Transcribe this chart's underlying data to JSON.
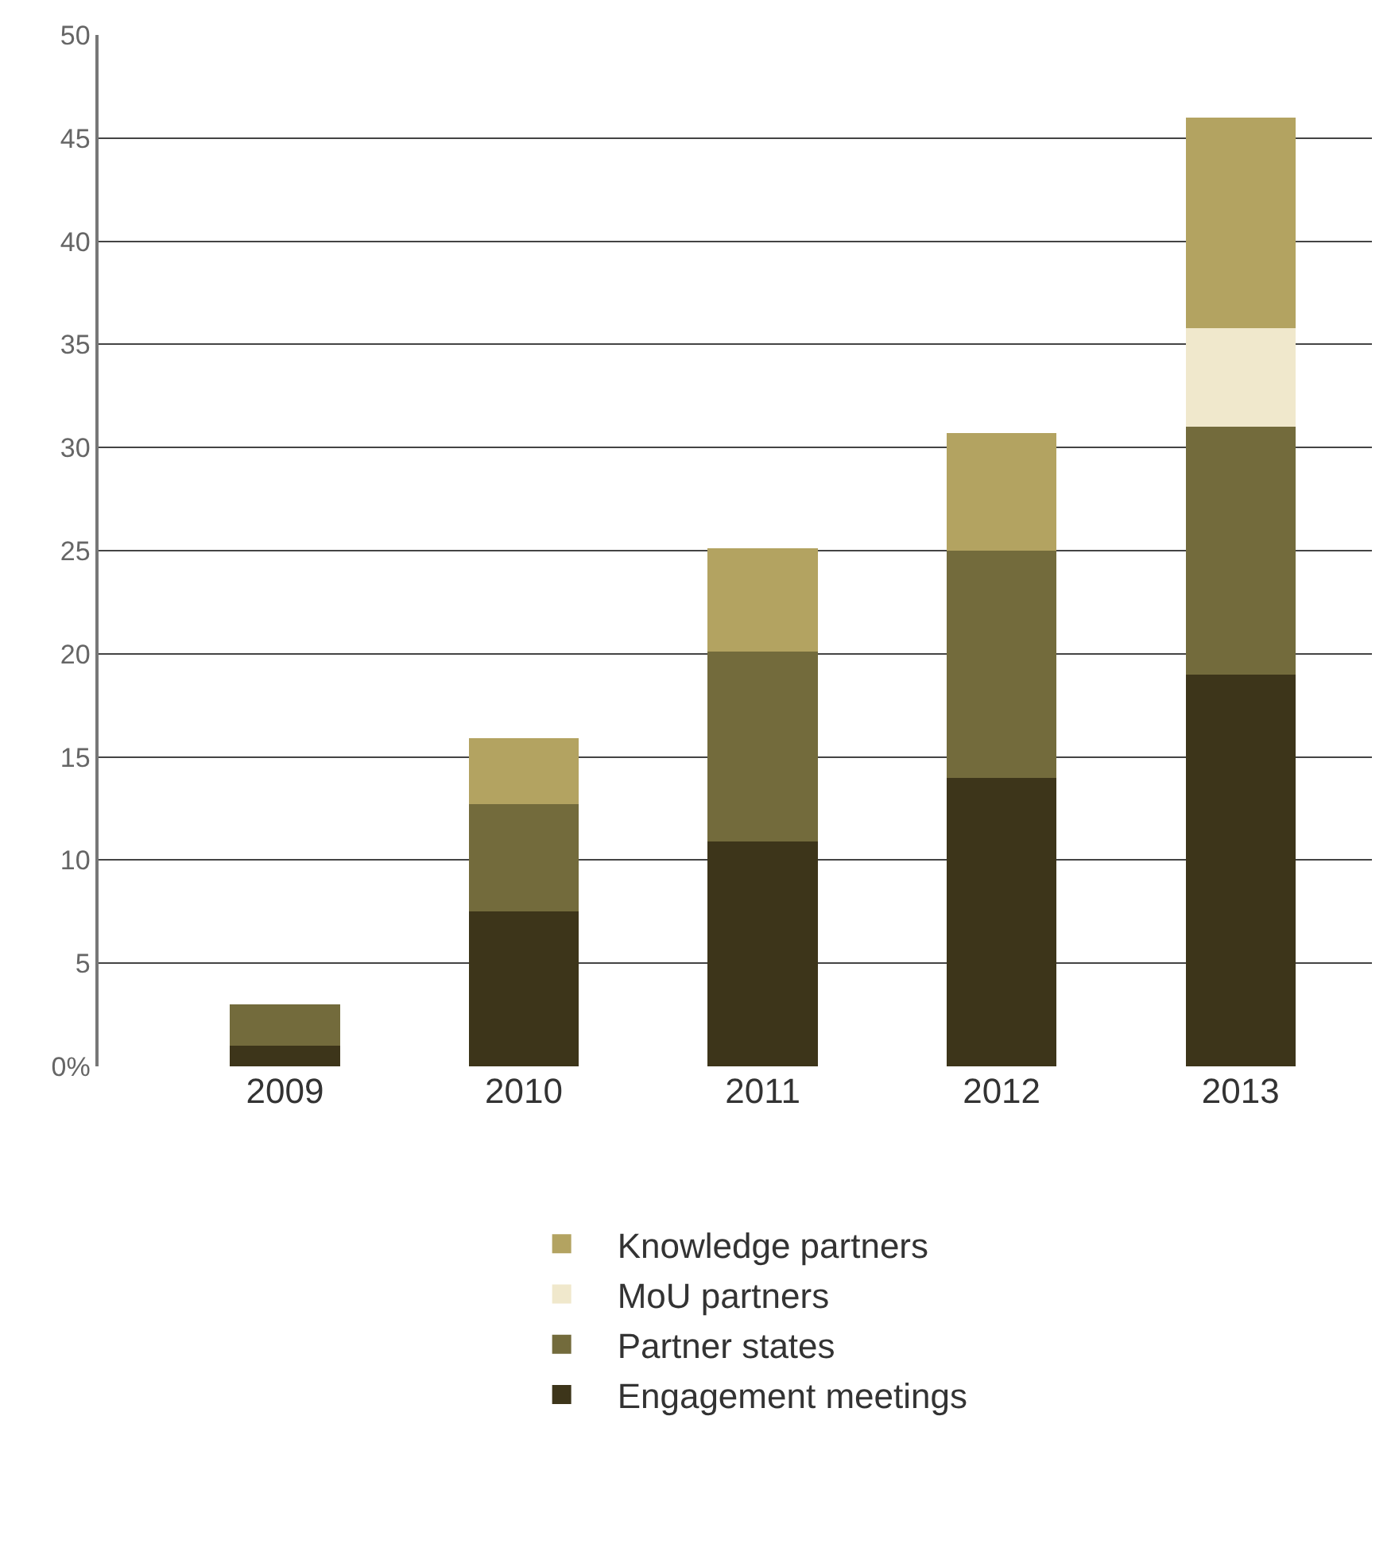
{
  "chart_data": {
    "type": "bar",
    "stacked": true,
    "categories": [
      "2009",
      "2010",
      "2011",
      "2012",
      "2013"
    ],
    "series": [
      {
        "name": "Engagement meetings",
        "color": "#3d351a",
        "values": [
          1,
          7.5,
          10.9,
          14,
          19
        ]
      },
      {
        "name": "Partner states",
        "color": "#736b3c",
        "values": [
          2,
          5.2,
          9.2,
          11,
          12
        ]
      },
      {
        "name": "MoU partners",
        "color": "#f0e8cc",
        "values": [
          null,
          null,
          null,
          null,
          4.8
        ]
      },
      {
        "name": "Knowledge partners",
        "color": "#b3a361",
        "values": [
          null,
          3.2,
          5.0,
          5.7,
          10.2
        ]
      }
    ],
    "ylim": [
      0,
      50
    ],
    "yticks": [
      {
        "value": 0,
        "label": "0%"
      },
      5,
      10,
      15,
      20,
      25,
      30,
      35,
      40,
      45,
      50
    ],
    "grid": "y",
    "legend": "bottom"
  }
}
